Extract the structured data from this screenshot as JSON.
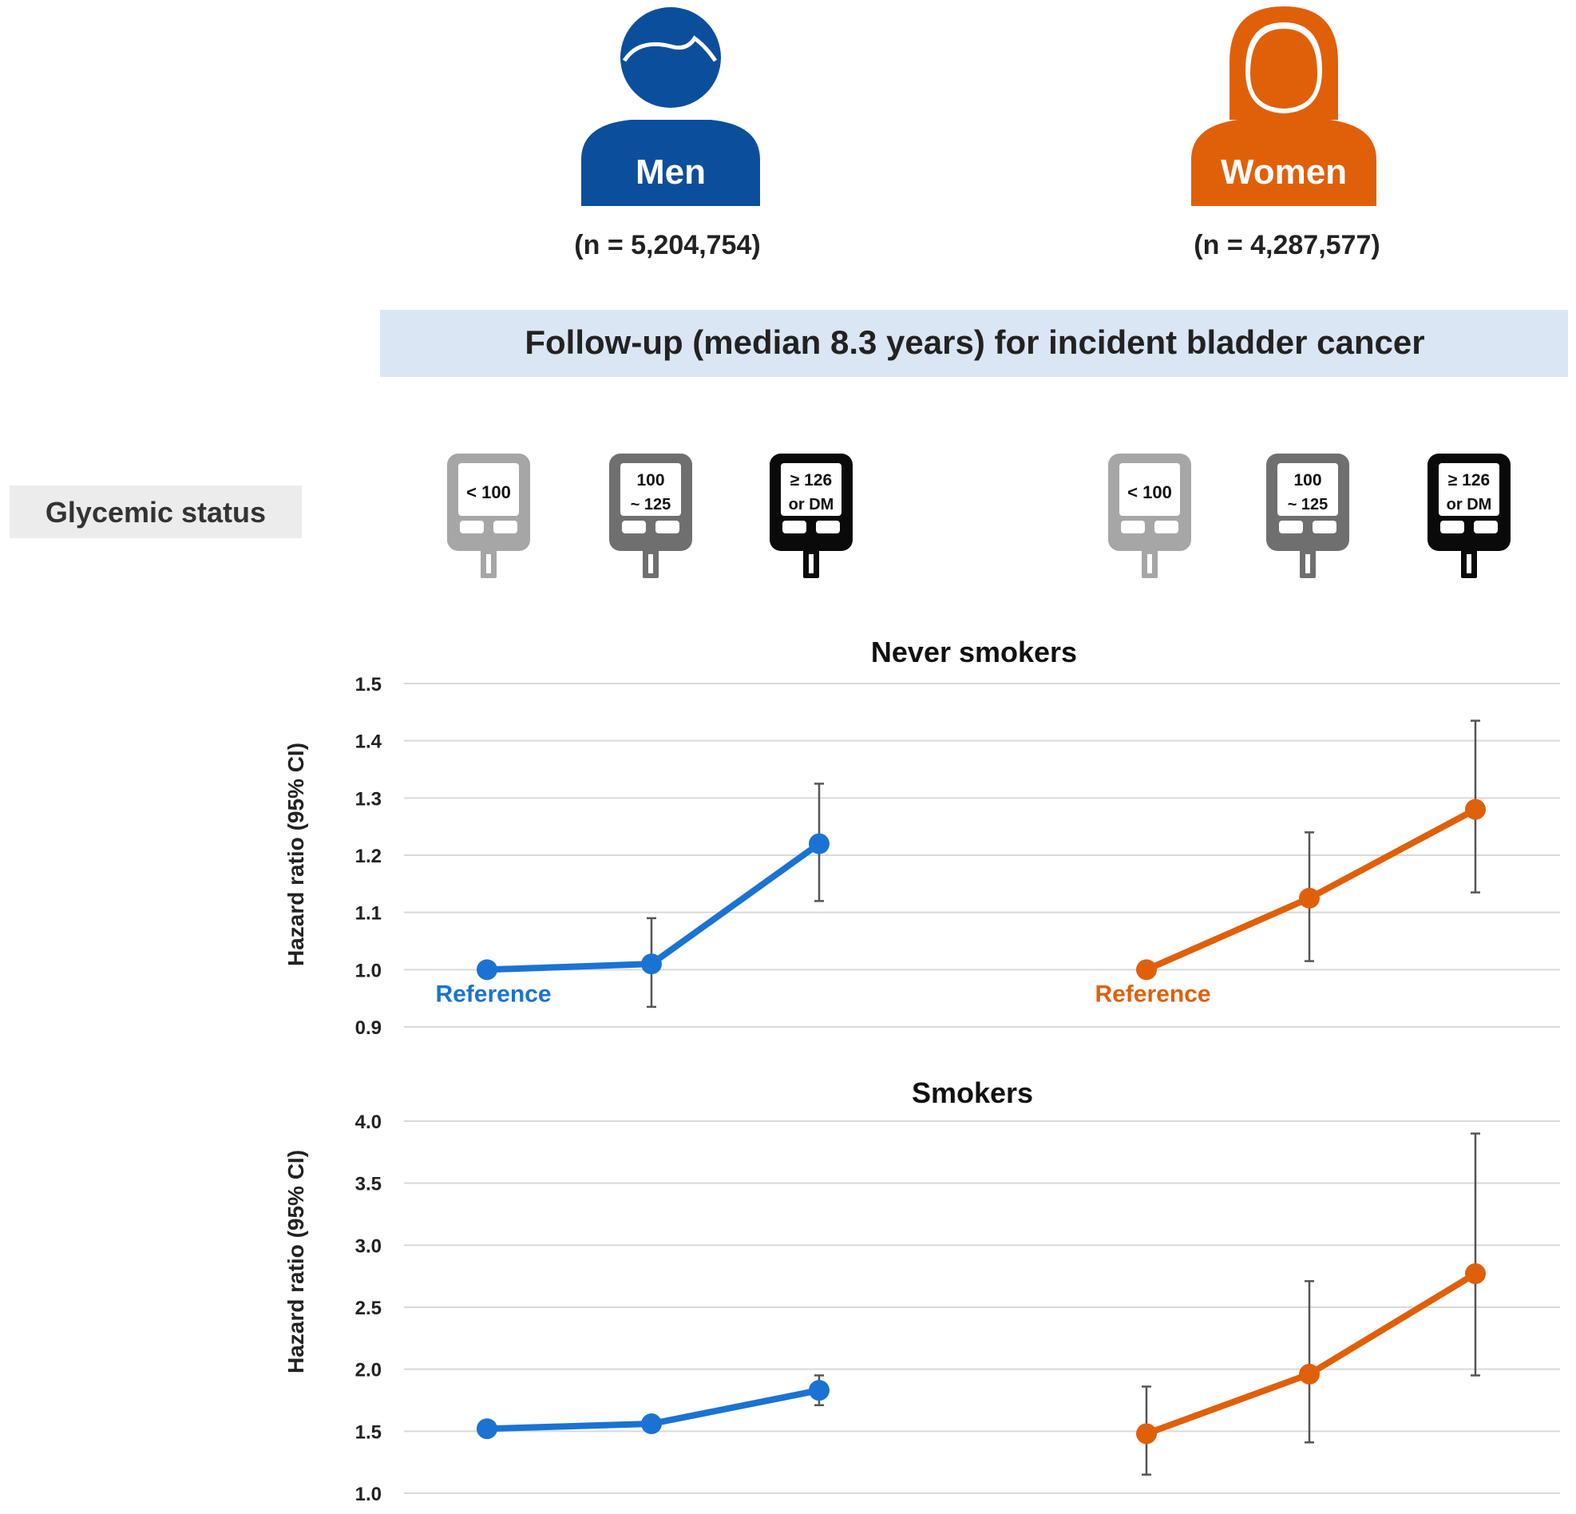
{
  "groups": {
    "men": {
      "label": "Men",
      "n": "(n = 5,204,754)",
      "color": "#0b4f9c"
    },
    "women": {
      "label": "Women",
      "n": "(n = 4,287,577)",
      "color": "#e0600a"
    }
  },
  "followup_banner": "Follow-up (median 8.3 years) for incident bladder cancer",
  "glycemic_label": "Glycemic status",
  "glucometers": [
    {
      "line1": "< 100",
      "line2": "",
      "shade": "#a6a6a6"
    },
    {
      "line1": "100",
      "line2": "~ 125",
      "shade": "#6f6f6f"
    },
    {
      "line1": "≥ 126",
      "line2": "or DM",
      "shade": "#0a0a0a"
    }
  ],
  "reference_label": "Reference",
  "colors": {
    "men_line": "#1a73d2",
    "women_line": "#e0600a",
    "grid": "#d9d9d9",
    "errbar": "#555555",
    "banner": "#dbe6f4",
    "label_box": "#ececec"
  },
  "chart_data": [
    {
      "type": "line",
      "title": "Never smokers",
      "ylabel": "Hazard ratio (95% CI)",
      "xlabel": "",
      "ylim": [
        0.9,
        1.5
      ],
      "yticks": [
        "0.9",
        "1.0",
        "1.1",
        "1.2",
        "1.3",
        "1.4",
        "1.5"
      ],
      "categories": [
        "< 100",
        "100 ~ 125",
        "≥ 126 or DM"
      ],
      "series": [
        {
          "name": "Men",
          "values": [
            1.0,
            1.01,
            1.22
          ],
          "ci_low": [
            1.0,
            0.935,
            1.12
          ],
          "ci_high": [
            1.0,
            1.09,
            1.325
          ],
          "reference_first": true
        },
        {
          "name": "Women",
          "values": [
            1.0,
            1.125,
            1.28
          ],
          "ci_low": [
            1.0,
            1.015,
            1.135
          ],
          "ci_high": [
            1.0,
            1.24,
            1.435
          ],
          "reference_first": true
        }
      ]
    },
    {
      "type": "line",
      "title": "Smokers",
      "ylabel": "Hazard ratio (95% CI)",
      "xlabel": "",
      "ylim": [
        1.0,
        4.0
      ],
      "yticks": [
        "1.0",
        "1.5",
        "2.0",
        "2.5",
        "3.0",
        "3.5",
        "4.0"
      ],
      "categories": [
        "< 100",
        "100 ~ 125",
        "≥ 126 or DM"
      ],
      "series": [
        {
          "name": "Men",
          "values": [
            1.52,
            1.56,
            1.83
          ],
          "ci_low": [
            1.52,
            1.5,
            1.71
          ],
          "ci_high": [
            1.52,
            1.62,
            1.95
          ],
          "reference_first": false
        },
        {
          "name": "Women",
          "values": [
            1.48,
            1.96,
            2.77
          ],
          "ci_low": [
            1.15,
            1.41,
            1.95
          ],
          "ci_high": [
            1.86,
            2.71,
            3.9
          ],
          "reference_first": false
        }
      ]
    }
  ]
}
